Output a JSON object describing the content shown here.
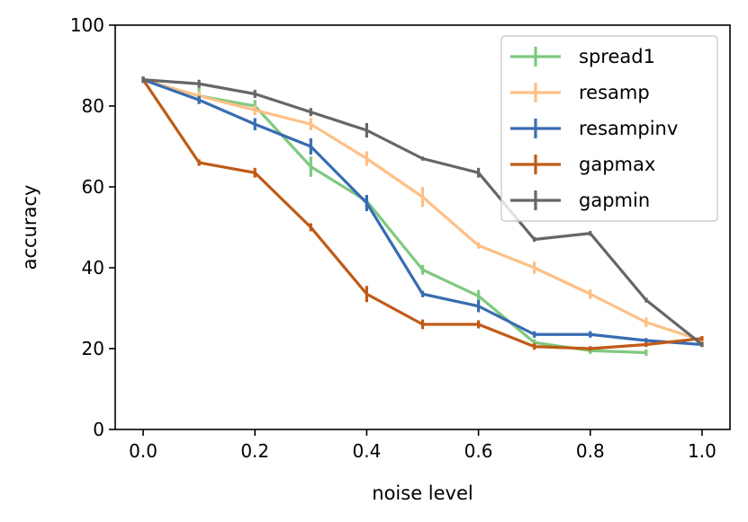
{
  "chart_data": {
    "type": "line",
    "title": "",
    "xlabel": "noise level",
    "ylabel": "accuracy",
    "xlim": [
      -0.05,
      1.05
    ],
    "ylim": [
      0,
      100
    ],
    "xticks": [
      0.0,
      0.2,
      0.4,
      0.6,
      0.8,
      1.0
    ],
    "xtick_labels": [
      "0.0",
      "0.2",
      "0.4",
      "0.6",
      "0.8",
      "1.0"
    ],
    "yticks": [
      0,
      20,
      40,
      60,
      80,
      100
    ],
    "ytick_labels": [
      "0",
      "20",
      "40",
      "60",
      "80",
      "100"
    ],
    "grid": false,
    "legend_position": "top-right",
    "series": [
      {
        "name": "spread1",
        "color": "#7fc97f",
        "x": [
          0.0,
          0.1,
          0.2,
          0.3,
          0.4,
          0.5,
          0.6,
          0.7,
          0.8,
          0.9
        ],
        "y": [
          86.5,
          82.5,
          80.0,
          65.0,
          56.5,
          39.5,
          33.0,
          21.5,
          19.5,
          19.0
        ],
        "err": [
          0.8,
          2.0,
          1.5,
          2.5,
          1.5,
          1.2,
          1.5,
          0.8,
          0.8,
          0.8
        ]
      },
      {
        "name": "resamp",
        "color": "#fdc086",
        "x": [
          0.0,
          0.1,
          0.2,
          0.3,
          0.4,
          0.5,
          0.6,
          0.7,
          0.8,
          0.9,
          1.0
        ],
        "y": [
          86.5,
          82.5,
          79.0,
          75.5,
          67.0,
          57.5,
          45.5,
          40.0,
          33.5,
          26.5,
          22.0
        ],
        "err": [
          0.8,
          1.2,
          1.2,
          1.5,
          1.8,
          2.5,
          0.8,
          1.5,
          1.2,
          1.2,
          0.8
        ]
      },
      {
        "name": "resampinv",
        "color": "#386cb0",
        "x": [
          0.0,
          0.1,
          0.2,
          0.3,
          0.4,
          0.5,
          0.6,
          0.7,
          0.8,
          0.9,
          1.0
        ],
        "y": [
          86.5,
          81.5,
          75.5,
          70.0,
          56.0,
          33.5,
          30.5,
          23.5,
          23.5,
          22.0,
          21.0
        ],
        "err": [
          0.8,
          1.0,
          1.5,
          2.0,
          2.0,
          0.8,
          1.5,
          0.8,
          0.8,
          0.6,
          0.6
        ]
      },
      {
        "name": "gapmax",
        "color": "#bf5b17",
        "x": [
          0.0,
          0.1,
          0.2,
          0.3,
          0.4,
          0.5,
          0.6,
          0.7,
          0.8,
          0.9,
          1.0
        ],
        "y": [
          86.5,
          66.0,
          63.5,
          50.0,
          33.5,
          26.0,
          26.0,
          20.5,
          20.0,
          21.0,
          22.5
        ],
        "err": [
          0.6,
          0.8,
          1.2,
          1.0,
          2.0,
          1.2,
          1.0,
          0.8,
          0.6,
          0.6,
          0.6
        ]
      },
      {
        "name": "gapmin",
        "color": "#666666",
        "x": [
          0.0,
          0.1,
          0.2,
          0.3,
          0.4,
          0.5,
          0.6,
          0.7,
          0.8,
          0.9,
          1.0
        ],
        "y": [
          86.5,
          85.5,
          83.0,
          78.5,
          74.0,
          67.0,
          63.5,
          47.0,
          48.5,
          32.0,
          21.0
        ],
        "err": [
          0.6,
          1.0,
          1.0,
          1.0,
          1.8,
          0.5,
          1.2,
          0.6,
          0.6,
          0.6,
          0.6
        ]
      }
    ]
  }
}
